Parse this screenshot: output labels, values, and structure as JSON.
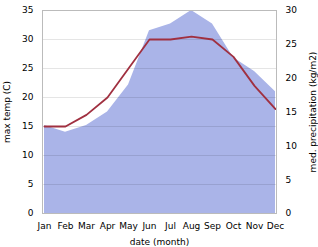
{
  "chart_data": {
    "type": "line",
    "xlabel": "date (month)",
    "ylabel": "max temp (C)",
    "y2label": "med. precipitation (kg/m2)",
    "categories": [
      "Jan",
      "Feb",
      "Mar",
      "Apr",
      "May",
      "Jun",
      "Jul",
      "Aug",
      "Sep",
      "Oct",
      "Nov",
      "Dec"
    ],
    "series": [
      {
        "type": "area",
        "color": "#aab4e8",
        "axis": "y2",
        "values": [
          13,
          12,
          13,
          15,
          19,
          27,
          28,
          30,
          28,
          23,
          21,
          18
        ]
      },
      {
        "type": "line",
        "color": "#a03040",
        "values": [
          15,
          15,
          17,
          20,
          25,
          30,
          30,
          30.5,
          30,
          27,
          22,
          18
        ]
      }
    ],
    "ylim": [
      0,
      35
    ],
    "yticks": [
      0,
      5,
      10,
      15,
      20,
      25,
      30,
      35
    ],
    "y2lim": [
      0,
      30
    ],
    "y2ticks": [
      0,
      5,
      10,
      15,
      20,
      25,
      30
    ],
    "grid": true
  }
}
